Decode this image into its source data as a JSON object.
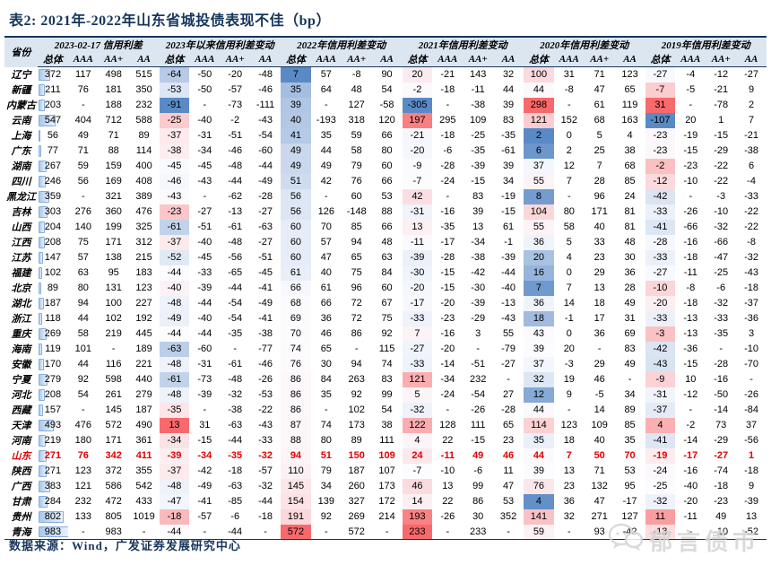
{
  "title": "表2:  2021年-2022年山东省城投债表现不佳（bp）",
  "table": {
    "province_header": "省份",
    "groups": [
      {
        "label": "2023-02-17 信用利差",
        "sub": [
          "总体",
          "AAA",
          "AA+",
          "AA"
        ]
      },
      {
        "label": "2023年以来信用利差变动",
        "sub": [
          "总体",
          "AAA",
          "AA+",
          "AA"
        ]
      },
      {
        "label": "2022年信用利差变动",
        "sub": [
          "总体",
          "AAA",
          "AA+",
          "AA"
        ]
      },
      {
        "label": "2021年信用利差变动",
        "sub": [
          "总体",
          "AAA",
          "AA+",
          "AA"
        ]
      },
      {
        "label": "2020年信用利差变动",
        "sub": [
          "总体",
          "AAA",
          "AA+",
          "AA"
        ]
      },
      {
        "label": "2019年信用利差变动",
        "sub": [
          "总体",
          "AAA",
          "AA+",
          "AA"
        ]
      }
    ],
    "highlight_row": "山东",
    "databar_column": 0,
    "heatmap_columns": [
      4,
      8,
      12,
      16,
      20
    ],
    "rows": [
      {
        "name": "辽宁",
        "values": [
          372,
          117,
          498,
          515,
          -64,
          -50,
          -20,
          -48,
          7,
          57,
          -8,
          90,
          20,
          -21,
          143,
          32,
          100,
          31,
          71,
          123,
          -27,
          -4,
          -12,
          -27
        ]
      },
      {
        "name": "新疆",
        "values": [
          211,
          76,
          181,
          350,
          -53,
          -50,
          -57,
          -46,
          35,
          64,
          48,
          54,
          -2,
          -18,
          -11,
          44,
          44,
          -8,
          47,
          65,
          -7,
          -5,
          -21,
          9
        ]
      },
      {
        "name": "内蒙古",
        "values": [
          203,
          "-",
          188,
          232,
          -91,
          "-",
          -73,
          -111,
          39,
          "-",
          127,
          -58,
          -305,
          "-",
          -38,
          39,
          298,
          "-",
          61,
          119,
          31,
          "-",
          -78,
          2
        ]
      },
      {
        "name": "云南",
        "values": [
          547,
          404,
          712,
          588,
          -25,
          -40,
          -2,
          -43,
          40,
          -193,
          318,
          120,
          197,
          295,
          109,
          83,
          121,
          152,
          68,
          163,
          -107,
          20,
          1,
          7
        ]
      },
      {
        "name": "上海",
        "values": [
          56,
          49,
          71,
          89,
          -37,
          -31,
          -51,
          -54,
          41,
          35,
          59,
          66,
          -21,
          -18,
          -25,
          -35,
          2,
          0,
          5,
          4,
          -23,
          -19,
          -15,
          -21
        ]
      },
      {
        "name": "广东",
        "values": [
          77,
          71,
          88,
          114,
          -38,
          -34,
          -46,
          -60,
          49,
          44,
          58,
          80,
          -20,
          -6,
          -35,
          -61,
          6,
          2,
          25,
          38,
          -23,
          -15,
          -29,
          -38
        ]
      },
      {
        "name": "湖南",
        "values": [
          267,
          59,
          159,
          400,
          -45,
          -45,
          -48,
          -44,
          49,
          49,
          79,
          60,
          -9,
          -28,
          -39,
          39,
          37,
          12,
          7,
          68,
          -2,
          -23,
          -22,
          6
        ]
      },
      {
        "name": "四川",
        "values": [
          246,
          56,
          169,
          408,
          -46,
          -43,
          -44,
          -49,
          51,
          42,
          76,
          66,
          -7,
          -24,
          -15,
          34,
          55,
          7,
          28,
          85,
          -12,
          -10,
          -22,
          -4
        ]
      },
      {
        "name": "黑龙江",
        "values": [
          359,
          "-",
          321,
          389,
          -43,
          "-",
          -62,
          -28,
          56,
          "-",
          60,
          53,
          42,
          "-",
          83,
          -19,
          8,
          "-",
          96,
          24,
          -42,
          "-",
          -3,
          -33
        ]
      },
      {
        "name": "吉林",
        "values": [
          303,
          276,
          360,
          476,
          -23,
          -27,
          -13,
          -27,
          56,
          126,
          -148,
          88,
          -31,
          -16,
          39,
          -15,
          104,
          80,
          171,
          81,
          -33,
          -26,
          -10,
          -22
        ]
      },
      {
        "name": "山西",
        "values": [
          204,
          140,
          199,
          325,
          -61,
          -51,
          -61,
          -63,
          60,
          70,
          85,
          66,
          13,
          -35,
          13,
          61,
          55,
          58,
          40,
          81,
          -41,
          -66,
          -32,
          -22
        ]
      },
      {
        "name": "江西",
        "values": [
          208,
          75,
          171,
          312,
          -37,
          -40,
          -48,
          -27,
          60,
          57,
          94,
          48,
          -11,
          -17,
          -34,
          -1,
          36,
          5,
          33,
          48,
          -28,
          -16,
          -66,
          -8
        ]
      },
      {
        "name": "江苏",
        "values": [
          147,
          57,
          138,
          215,
          -52,
          -45,
          -56,
          -51,
          60,
          47,
          65,
          63,
          -39,
          -28,
          -38,
          -39,
          20,
          4,
          23,
          30,
          -33,
          -18,
          -47,
          -32
        ]
      },
      {
        "name": "福建",
        "values": [
          102,
          63,
          95,
          183,
          -44,
          -33,
          -65,
          -45,
          61,
          40,
          75,
          84,
          -30,
          -15,
          -42,
          -44,
          16,
          0,
          29,
          36,
          -27,
          -11,
          -25,
          -43
        ]
      },
      {
        "name": "北京",
        "values": [
          89,
          80,
          131,
          123,
          -40,
          -39,
          -44,
          -41,
          66,
          61,
          96,
          60,
          -20,
          -15,
          -30,
          -40,
          7,
          7,
          13,
          28,
          -10,
          -8,
          -6,
          -18
        ]
      },
      {
        "name": "湖北",
        "values": [
          187,
          94,
          100,
          227,
          -48,
          -44,
          -54,
          -49,
          68,
          66,
          72,
          67,
          -17,
          -20,
          -39,
          -13,
          36,
          14,
          18,
          49,
          -20,
          -18,
          -32,
          -37
        ]
      },
      {
        "name": "浙江",
        "values": [
          118,
          44,
          102,
          192,
          -49,
          -40,
          -54,
          -41,
          69,
          36,
          72,
          75,
          -33,
          -23,
          -29,
          -43,
          18,
          -1,
          17,
          31,
          -33,
          -13,
          -33,
          -36
        ]
      },
      {
        "name": "重庆",
        "values": [
          269,
          58,
          219,
          445,
          -44,
          -44,
          -35,
          -38,
          70,
          46,
          86,
          92,
          7,
          -16,
          3,
          55,
          43,
          0,
          36,
          69,
          -3,
          -13,
          -35,
          3
        ]
      },
      {
        "name": "海南",
        "values": [
          119,
          101,
          "-",
          189,
          -63,
          -60,
          "-",
          -77,
          74,
          65,
          "-",
          115,
          -27,
          -20,
          "-",
          -79,
          39,
          20,
          "-",
          83,
          -42,
          -36,
          "-",
          -10
        ]
      },
      {
        "name": "安徽",
        "values": [
          170,
          44,
          116,
          221,
          -48,
          -31,
          -61,
          -46,
          76,
          30,
          94,
          74,
          -33,
          -14,
          -51,
          -27,
          37,
          -3,
          29,
          49,
          -43,
          -15,
          -28,
          -70
        ]
      },
      {
        "name": "宁夏",
        "values": [
          279,
          92,
          598,
          440,
          -61,
          -73,
          -48,
          -26,
          86,
          84,
          263,
          83,
          121,
          -34,
          232,
          "-",
          32,
          19,
          46,
          "-",
          -9,
          10,
          -16,
          "-"
        ]
      },
      {
        "name": "河北",
        "values": [
          208,
          54,
          261,
          279,
          -48,
          -39,
          -32,
          -53,
          86,
          35,
          92,
          99,
          5,
          -24,
          -54,
          27,
          12,
          9,
          -5,
          34,
          -31,
          -12,
          -50,
          -26
        ]
      },
      {
        "name": "西藏",
        "values": [
          157,
          "-",
          145,
          187,
          -35,
          "-",
          -38,
          -22,
          86,
          "-",
          102,
          54,
          -32,
          "-",
          -26,
          -28,
          44,
          "-",
          14,
          89,
          -37,
          "-",
          -14,
          -84
        ]
      },
      {
        "name": "天津",
        "values": [
          493,
          476,
          572,
          490,
          13,
          31,
          -63,
          -43,
          87,
          74,
          173,
          38,
          122,
          128,
          111,
          65,
          114,
          123,
          109,
          85,
          4,
          -2,
          73,
          37
        ]
      },
      {
        "name": "河南",
        "values": [
          219,
          180,
          171,
          361,
          -34,
          -15,
          -44,
          -33,
          88,
          80,
          89,
          111,
          4,
          22,
          -15,
          23,
          35,
          18,
          40,
          35,
          -41,
          -14,
          -29,
          -56
        ]
      },
      {
        "name": "山东",
        "values": [
          271,
          76,
          342,
          411,
          -39,
          -34,
          -35,
          -32,
          94,
          51,
          150,
          109,
          24,
          -11,
          49,
          46,
          44,
          7,
          50,
          70,
          -19,
          -17,
          -27,
          1
        ]
      },
      {
        "name": "陕西",
        "values": [
          271,
          123,
          372,
          355,
          -37,
          -42,
          -18,
          -57,
          110,
          79,
          187,
          107,
          -7,
          -10,
          -6,
          11,
          39,
          13,
          71,
          53,
          -24,
          -16,
          -74,
          -18
        ]
      },
      {
        "name": "广西",
        "values": [
          383,
          121,
          586,
          542,
          -48,
          -49,
          -63,
          -32,
          145,
          34,
          260,
          173,
          46,
          13,
          99,
          47,
          76,
          23,
          132,
          95,
          -25,
          -40,
          -18,
          9
        ]
      },
      {
        "name": "甘肃",
        "values": [
          284,
          232,
          472,
          433,
          -47,
          -41,
          -85,
          -44,
          154,
          139,
          327,
          172,
          14,
          22,
          86,
          53,
          4,
          36,
          47,
          -17,
          -32,
          -20,
          -23,
          -39
        ]
      },
      {
        "name": "贵州",
        "values": [
          802,
          133,
          805,
          1019,
          -18,
          -57,
          -6,
          -18,
          191,
          92,
          269,
          214,
          193,
          -26,
          30,
          352,
          141,
          32,
          271,
          127,
          11,
          -11,
          49,
          13
        ]
      },
      {
        "name": "青海",
        "values": [
          983,
          "-",
          983,
          "-",
          -44,
          "-",
          -44,
          "-",
          572,
          "-",
          572,
          "-",
          233,
          "-",
          233,
          "-",
          59,
          "-",
          93,
          -42,
          -13,
          "-",
          -10,
          -52
        ]
      }
    ]
  },
  "footer": {
    "source": "数据来源：Wind，广发证券发展研究中心"
  },
  "watermark": {
    "label": "郁言债市",
    "icon": "wechat-chat-bubbles-icon"
  },
  "colors": {
    "navy": "#17365D",
    "header_bg": "#DCE6F1",
    "heat_low": "#5A8AC6",
    "heat_mid": "#FCFCFF",
    "heat_high": "#F8696B",
    "highlight_text": "#E00000",
    "databar_fill": "#A8C8EA",
    "databar_border": "#86ADDB"
  }
}
